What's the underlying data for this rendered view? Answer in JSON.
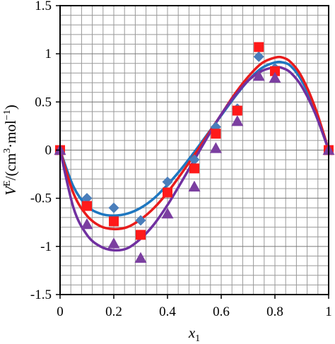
{
  "chart_data": {
    "type": "scatter",
    "title": "",
    "xlabel": {
      "main": "x",
      "sub": "1"
    },
    "ylabel": {
      "main": "V",
      "sup": "E",
      "rest": "/(cm",
      "sup2": "3",
      "mid": "·mol",
      "sup3": "−1",
      "end": ")"
    },
    "xlim": [
      0,
      1
    ],
    "ylim": [
      -1.5,
      1.5
    ],
    "x_ticks": [
      0,
      0.2,
      0.4,
      0.6,
      0.8,
      1
    ],
    "x_tick_labels": [
      "0",
      "0.2",
      "0.4",
      "0.6",
      "0.8",
      "1"
    ],
    "y_ticks": [
      -1.5,
      -1,
      -0.5,
      0,
      0.5,
      1,
      1.5
    ],
    "y_tick_labels": [
      "-1.5",
      "-1",
      "-0.5",
      "0",
      "0.5",
      "1",
      "1.5"
    ],
    "grid": true,
    "legend": "none",
    "series": [
      {
        "marker": "diamond",
        "color": "#4A7EBB",
        "line_color": "#1F77C0",
        "x": [
          0,
          0.1,
          0.2,
          0.3,
          0.4,
          0.5,
          0.58,
          0.66,
          0.74,
          0.8,
          1
        ],
        "y": [
          0,
          -0.5,
          -0.6,
          -0.73,
          -0.33,
          -0.1,
          0.24,
          0.43,
          0.97,
          0.85,
          0
        ],
        "fit_x": [
          0,
          0.05,
          0.1,
          0.15,
          0.2,
          0.25,
          0.3,
          0.35,
          0.4,
          0.45,
          0.5,
          0.55,
          0.6,
          0.65,
          0.7,
          0.75,
          0.8,
          0.83,
          0.86,
          0.9,
          0.95,
          1
        ],
        "fit_y": [
          0,
          -0.38,
          -0.58,
          -0.66,
          -0.68,
          -0.66,
          -0.6,
          -0.5,
          -0.36,
          -0.2,
          -0.02,
          0.17,
          0.36,
          0.55,
          0.72,
          0.85,
          0.91,
          0.91,
          0.87,
          0.72,
          0.42,
          0
        ]
      },
      {
        "marker": "square",
        "color": "#FF1A1A",
        "line_color": "#E81C1C",
        "x": [
          0,
          0.1,
          0.2,
          0.3,
          0.4,
          0.5,
          0.58,
          0.66,
          0.74,
          0.8,
          1
        ],
        "y": [
          0,
          -0.58,
          -0.74,
          -0.88,
          -0.44,
          -0.19,
          0.17,
          0.41,
          1.07,
          0.82,
          0
        ],
        "fit_x": [
          0,
          0.05,
          0.1,
          0.15,
          0.2,
          0.25,
          0.3,
          0.35,
          0.4,
          0.45,
          0.5,
          0.55,
          0.6,
          0.65,
          0.7,
          0.75,
          0.8,
          0.83,
          0.86,
          0.9,
          0.95,
          1
        ],
        "fit_y": [
          0,
          -0.45,
          -0.68,
          -0.79,
          -0.82,
          -0.8,
          -0.72,
          -0.6,
          -0.44,
          -0.25,
          -0.05,
          0.16,
          0.37,
          0.58,
          0.76,
          0.9,
          0.96,
          0.96,
          0.91,
          0.76,
          0.44,
          0
        ]
      },
      {
        "marker": "triangle",
        "color": "#7B3FA0",
        "line_color": "#7030A0",
        "x": [
          0,
          0.1,
          0.2,
          0.3,
          0.4,
          0.5,
          0.58,
          0.66,
          0.74,
          0.8,
          1
        ],
        "y": [
          0,
          -0.77,
          -0.97,
          -1.12,
          -0.66,
          -0.38,
          0.02,
          0.3,
          0.77,
          0.75,
          0
        ],
        "fit_x": [
          0,
          0.05,
          0.1,
          0.15,
          0.2,
          0.25,
          0.3,
          0.35,
          0.4,
          0.45,
          0.5,
          0.55,
          0.6,
          0.65,
          0.7,
          0.75,
          0.8,
          0.83,
          0.86,
          0.9,
          0.95,
          1
        ],
        "fit_y": [
          0,
          -0.6,
          -0.88,
          -1.0,
          -1.04,
          -1.02,
          -0.92,
          -0.77,
          -0.57,
          -0.34,
          -0.1,
          0.14,
          0.37,
          0.56,
          0.72,
          0.82,
          0.86,
          0.85,
          0.8,
          0.66,
          0.38,
          0
        ]
      }
    ]
  }
}
